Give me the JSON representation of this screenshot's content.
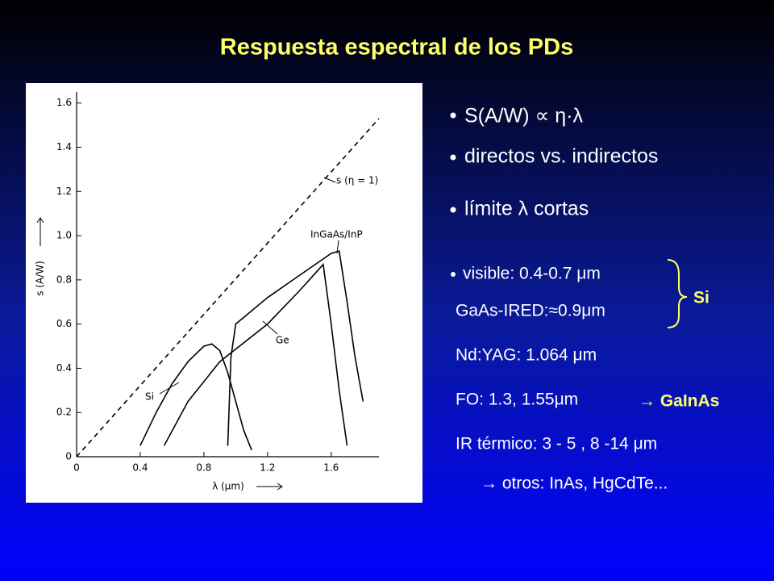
{
  "title": "Respuesta espectral de los PDs",
  "chart_data": {
    "type": "line",
    "x_label": "λ (μm)",
    "y_label": "s (A/W)",
    "xlim": [
      0,
      1.9
    ],
    "ylim": [
      0,
      1.65
    ],
    "xticks": [
      0,
      0.4,
      0.8,
      1.2,
      1.6
    ],
    "yticks": [
      0,
      0.2,
      0.4,
      0.6,
      0.8,
      {
        "value": 1,
        "label": "1.0"
      },
      1.2,
      1.4,
      1.6
    ],
    "series": [
      {
        "name": "s (η = 1)",
        "color": "#000000",
        "style": "dashed",
        "x": [
          0,
          1.9
        ],
        "values": [
          0,
          1.53
        ]
      },
      {
        "name": "Si",
        "color": "#000000",
        "style": "solid",
        "x": [
          0.4,
          0.5,
          0.6,
          0.7,
          0.8,
          0.85,
          0.9,
          0.95,
          1.0,
          1.05,
          1.1
        ],
        "values": [
          0.05,
          0.2,
          0.33,
          0.43,
          0.5,
          0.51,
          0.48,
          0.38,
          0.25,
          0.12,
          0.03
        ]
      },
      {
        "name": "Ge",
        "color": "#000000",
        "style": "solid",
        "x": [
          0.55,
          0.7,
          0.9,
          1.2,
          1.4,
          1.55,
          1.6,
          1.65,
          1.7
        ],
        "values": [
          0.05,
          0.25,
          0.43,
          0.6,
          0.75,
          0.87,
          0.6,
          0.3,
          0.05
        ]
      },
      {
        "name": "InGaAs/InP",
        "color": "#000000",
        "style": "solid",
        "x": [
          0.95,
          0.97,
          1.0,
          1.2,
          1.4,
          1.6,
          1.65,
          1.7,
          1.75,
          1.8
        ],
        "values": [
          0.05,
          0.45,
          0.6,
          0.72,
          0.82,
          0.92,
          0.93,
          0.7,
          0.45,
          0.25
        ]
      }
    ]
  },
  "bullets": [
    "S(A/W) ∝ η·λ",
    "directos vs. indirectos",
    "límite λ cortas",
    "visible: 0.4-0.7 μm"
  ],
  "lines": [
    "GaAs-IRED:≈0.9μm",
    "Nd:YAG: 1.064 μm",
    "FO: 1.3, 1.55μm",
    "IR térmico: 3 - 5 , 8 -14 μm",
    "→ otros: InAs, HgCdTe..."
  ],
  "brace_label": "Si",
  "fo_target": "→ GaInAs"
}
